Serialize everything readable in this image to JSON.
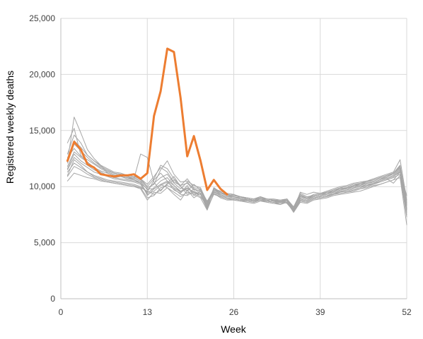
{
  "chart_data": {
    "type": "line",
    "title": "",
    "xlabel": "Week",
    "ylabel": "Registered weekly deaths",
    "xlim": [
      0,
      52
    ],
    "ylim": [
      0,
      25000
    ],
    "x_ticks": [
      0,
      13,
      26,
      39,
      52
    ],
    "x_tick_labels": [
      "0",
      "13",
      "26",
      "39",
      "52"
    ],
    "y_ticks": [
      0,
      5000,
      10000,
      15000,
      20000,
      25000
    ],
    "y_tick_labels": [
      "0",
      "5,000",
      "10,000",
      "15,000",
      "20,000",
      "25,000"
    ],
    "grid": "on",
    "legend": "none",
    "colors": {
      "highlight": "#ED7D31",
      "history": "#A6A6A6",
      "grid": "#D9D9D9",
      "axis": "#BFBFBF"
    },
    "series": [
      {
        "highlight": true,
        "values": [
          12300,
          14000,
          13300,
          12000,
          11700,
          11100,
          11000,
          10900,
          11000,
          11000,
          11100,
          10700,
          11200,
          16300,
          18500,
          22300,
          22000,
          17900,
          12700,
          14500,
          12300,
          9700,
          10600,
          9800,
          9300
        ]
      },
      {
        "highlight": false,
        "values": [
          13900,
          15200,
          12800,
          12100,
          11600,
          11300,
          11000,
          10800,
          10900,
          10700,
          10600,
          10300,
          9800,
          9800,
          10200,
          10500,
          10100,
          9600,
          9900,
          9500,
          9100,
          8300,
          9600,
          9200,
          9000,
          8900,
          8800,
          8900,
          8700,
          8800,
          8700,
          8600,
          8700,
          8500,
          7800,
          8900,
          8700,
          9000,
          9100,
          9200,
          9300,
          9400,
          9500,
          9600,
          9800,
          9900,
          10100,
          10200,
          10400,
          10600,
          11300,
          9200
        ]
      },
      {
        "highlight": false,
        "values": [
          11000,
          12400,
          11900,
          11300,
          11000,
          10800,
          10600,
          10500,
          10400,
          10300,
          10200,
          10000,
          9500,
          10600,
          11200,
          10500,
          9700,
          9400,
          10100,
          9200,
          9600,
          8600,
          9500,
          9300,
          9100,
          9100,
          8900,
          8800,
          8700,
          9000,
          8900,
          8800,
          8600,
          8700,
          8000,
          8700,
          8600,
          8900,
          9000,
          9100,
          9300,
          9600,
          9500,
          9700,
          9800,
          10000,
          10200,
          10500,
          10700,
          10300,
          11000,
          7300
        ]
      },
      {
        "highlight": false,
        "values": [
          12200,
          16200,
          14800,
          13300,
          12500,
          11900,
          11200,
          11000,
          10900,
          10800,
          10600,
          10400,
          9200,
          9800,
          10200,
          9900,
          9300,
          8800,
          9700,
          9000,
          9400,
          8000,
          9900,
          9500,
          9200,
          9100,
          9000,
          8900,
          8800,
          8900,
          8700,
          8800,
          8600,
          8900,
          7900,
          9500,
          9300,
          9500,
          9400,
          9600,
          9800,
          10000,
          10100,
          10300,
          10400,
          10500,
          10700,
          10900,
          11100,
          11300,
          12400,
          8800
        ]
      },
      {
        "highlight": false,
        "values": [
          10500,
          11200,
          11000,
          10800,
          10700,
          10500,
          10400,
          10300,
          10200,
          10100,
          10000,
          9900,
          9600,
          9300,
          9700,
          10200,
          10600,
          10000,
          9300,
          9800,
          9400,
          8100,
          9300,
          9100,
          8900,
          8800,
          8700,
          8600,
          8500,
          8700,
          8600,
          8500,
          8400,
          8600,
          7700,
          8600,
          8500,
          8800,
          8900,
          9000,
          9200,
          9300,
          9400,
          9500,
          9600,
          9800,
          10000,
          10200,
          10400,
          10600,
          10800,
          6600
        ]
      },
      {
        "highlight": false,
        "values": [
          11800,
          13100,
          12600,
          12200,
          11700,
          11400,
          11200,
          11000,
          10900,
          10800,
          10700,
          12900,
          12600,
          10400,
          9600,
          10300,
          10900,
          10000,
          9600,
          10200,
          9700,
          8700,
          9700,
          9400,
          9300,
          9200,
          9100,
          9000,
          8900,
          9100,
          8900,
          8800,
          8700,
          8900,
          8200,
          9400,
          9100,
          9200,
          9300,
          9400,
          9500,
          9700,
          9900,
          10000,
          10200,
          10300,
          10400,
          10600,
          10900,
          11200,
          11700,
          8100
        ]
      },
      {
        "highlight": false,
        "values": [
          12900,
          14600,
          13900,
          12800,
          12300,
          11800,
          11500,
          11200,
          11100,
          11000,
          10900,
          10700,
          10200,
          10900,
          11700,
          11300,
          10400,
          10100,
          10700,
          9900,
          9800,
          8300,
          9800,
          9400,
          9200,
          9300,
          9000,
          8900,
          8800,
          9000,
          8800,
          8700,
          8700,
          8800,
          8000,
          9200,
          8900,
          9100,
          9200,
          9400,
          9600,
          9900,
          9800,
          10000,
          10100,
          10300,
          10500,
          10700,
          10900,
          11100,
          11600,
          8500
        ]
      },
      {
        "highlight": false,
        "values": [
          11300,
          12100,
          11700,
          11300,
          10900,
          10700,
          10500,
          10400,
          10300,
          10200,
          10100,
          9900,
          9000,
          9200,
          9900,
          10100,
          9800,
          9300,
          9200,
          9600,
          9300,
          8000,
          9400,
          9100,
          8900,
          8900,
          8800,
          8700,
          8600,
          8800,
          8700,
          8600,
          8500,
          8700,
          7800,
          8800,
          8700,
          9000,
          9100,
          9200,
          9400,
          9600,
          9700,
          9900,
          10000,
          10100,
          10300,
          10500,
          10700,
          10900,
          11300,
          7700
        ]
      },
      {
        "highlight": false,
        "values": [
          12600,
          13400,
          12700,
          12400,
          12000,
          11600,
          11300,
          11100,
          11000,
          10900,
          10700,
          10500,
          9700,
          10300,
          10800,
          11100,
          10300,
          9800,
          10400,
          9800,
          9600,
          8200,
          9900,
          9500,
          9200,
          9200,
          9100,
          9000,
          8900,
          9100,
          8900,
          8900,
          8800,
          8900,
          8100,
          9100,
          8900,
          9200,
          9300,
          9500,
          9600,
          9800,
          9900,
          10100,
          10200,
          10400,
          10600,
          10800,
          11000,
          11200,
          11800,
          8400
        ]
      },
      {
        "highlight": false,
        "values": [
          11600,
          12900,
          12300,
          11900,
          11500,
          11200,
          11000,
          10800,
          10700,
          10600,
          10500,
          10300,
          9400,
          9900,
          10500,
          10800,
          10100,
          9500,
          9900,
          9400,
          9300,
          8400,
          9700,
          9300,
          9100,
          9000,
          8900,
          8800,
          8700,
          8900,
          8800,
          8700,
          8600,
          8800,
          7900,
          9000,
          8800,
          9100,
          9200,
          9300,
          9500,
          9700,
          9800,
          10000,
          10100,
          10300,
          10400,
          10600,
          10800,
          11000,
          11500,
          8000
        ]
      },
      {
        "highlight": false,
        "values": [
          12100,
          13800,
          13200,
          12600,
          12100,
          11700,
          11400,
          11200,
          11100,
          10900,
          10800,
          10600,
          9900,
          10200,
          11500,
          12300,
          11100,
          10400,
          10500,
          10100,
          9900,
          8600,
          9800,
          9600,
          9400,
          9300,
          9100,
          9000,
          8900,
          9000,
          8900,
          8800,
          8800,
          8900,
          8100,
          9300,
          9000,
          9300,
          9400,
          9500,
          9700,
          9900,
          10000,
          10200,
          10300,
          10500,
          10600,
          10800,
          11000,
          11200,
          11900,
          8600
        ]
      },
      {
        "highlight": false,
        "values": [
          10900,
          11800,
          11500,
          11100,
          10800,
          10600,
          10400,
          10300,
          10200,
          10100,
          10000,
          9800,
          8800,
          9500,
          9400,
          9900,
          9500,
          9100,
          9500,
          9300,
          9000,
          7900,
          9400,
          9000,
          8800,
          8800,
          8700,
          8700,
          8600,
          8800,
          8600,
          8500,
          8500,
          8600,
          7800,
          8700,
          8600,
          8900,
          9000,
          9100,
          9300,
          9500,
          9600,
          9800,
          9900,
          10100,
          10200,
          10400,
          10600,
          10800,
          11100,
          7500
        ]
      },
      {
        "highlight": false,
        "values": [
          12400,
          14100,
          13500,
          12800,
          12300,
          11900,
          11600,
          11300,
          11200,
          11000,
          10900,
          10700,
          10000,
          10700,
          11900,
          11600,
          10700,
          10100,
          10300,
          9700,
          9700,
          8500,
          9800,
          9500,
          9300,
          9200,
          9100,
          8900,
          8800,
          9000,
          8900,
          8800,
          8700,
          8900,
          8000,
          9200,
          9000,
          9200,
          9300,
          9500,
          9600,
          9800,
          9900,
          10100,
          10300,
          10400,
          10600,
          10800,
          11000,
          11200,
          11700,
          8300
        ]
      },
      {
        "highlight": false,
        "values": [
          11500,
          12600,
          12100,
          11700,
          11300,
          11100,
          10900,
          10700,
          10600,
          10500,
          10400,
          10200,
          9300,
          9600,
          10100,
          10400,
          9900,
          9500,
          9800,
          9500,
          9300,
          8400,
          9500,
          9200,
          9000,
          8900,
          8800,
          8800,
          8700,
          8900,
          8700,
          8600,
          8600,
          8700,
          7900,
          8900,
          8700,
          9000,
          9100,
          9200,
          9400,
          9600,
          9700,
          9900,
          10000,
          10200,
          10300,
          10500,
          10700,
          10900,
          11400,
          7900
        ]
      }
    ]
  }
}
